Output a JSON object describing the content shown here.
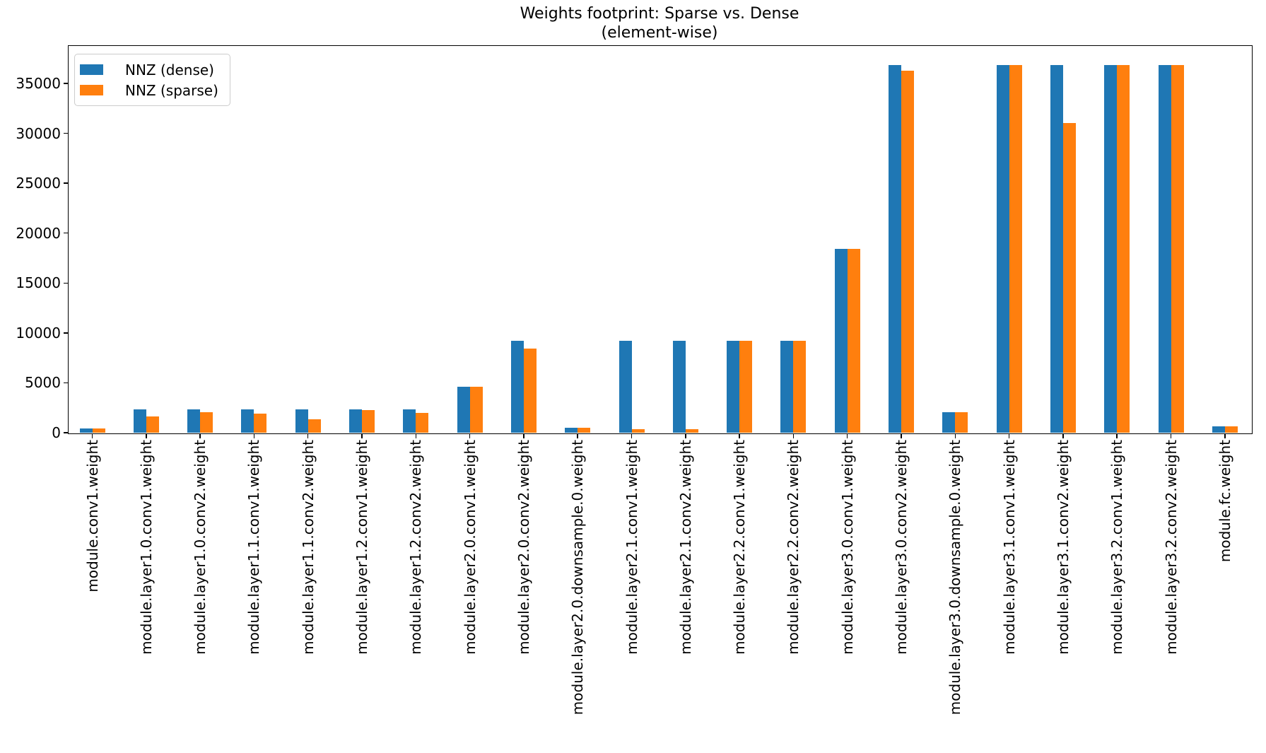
{
  "chart_data": {
    "type": "bar",
    "title": "Weights footprint: Sparse vs. Dense",
    "subtitle": "(element-wise)",
    "categories": [
      "module.conv1.weight",
      "module.layer1.0.conv1.weight",
      "module.layer1.0.conv2.weight",
      "module.layer1.1.conv1.weight",
      "module.layer1.1.conv2.weight",
      "module.layer1.2.conv1.weight",
      "module.layer1.2.conv2.weight",
      "module.layer2.0.conv1.weight",
      "module.layer2.0.conv2.weight",
      "module.layer2.0.downsample.0.weight",
      "module.layer2.1.conv1.weight",
      "module.layer2.1.conv2.weight",
      "module.layer2.2.conv1.weight",
      "module.layer2.2.conv2.weight",
      "module.layer3.0.conv1.weight",
      "module.layer3.0.conv2.weight",
      "module.layer3.0.downsample.0.weight",
      "module.layer3.1.conv1.weight",
      "module.layer3.1.conv2.weight",
      "module.layer3.2.conv1.weight",
      "module.layer3.2.conv2.weight",
      "module.fc.weight"
    ],
    "series": [
      {
        "name": "NNZ (dense)",
        "color": "#1f77b4",
        "values": [
          432,
          2304,
          2304,
          2304,
          2304,
          2304,
          2304,
          4608,
          9216,
          512,
          9216,
          9216,
          9216,
          9216,
          18432,
          36864,
          2048,
          36864,
          36864,
          36864,
          36864,
          640
        ]
      },
      {
        "name": "NNZ (sparse)",
        "color": "#ff7f0e",
        "values": [
          432,
          1630,
          2050,
          1930,
          1350,
          2240,
          1950,
          4608,
          8430,
          512,
          330,
          330,
          9216,
          9216,
          18432,
          36300,
          2048,
          36864,
          31000,
          36864,
          36864,
          640
        ]
      }
    ],
    "xlabel": "",
    "ylabel": "",
    "ylim": [
      0,
      38820
    ],
    "yticks": [
      0,
      5000,
      10000,
      15000,
      20000,
      25000,
      30000,
      35000
    ],
    "grid": false,
    "legend_position": "upper left"
  }
}
